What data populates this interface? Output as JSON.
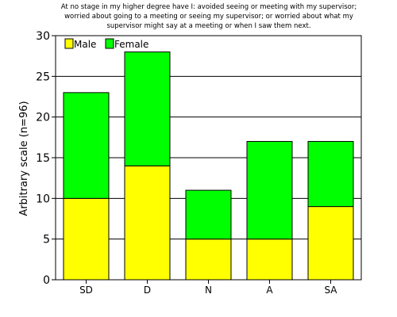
{
  "chart_data": {
    "type": "bar",
    "stacked": true,
    "title_lines": [
      "At no stage in my higher degree have I: avoided seeing or meeting with my supervisor;",
      "worried about going to a meeting or seeing my supervisor; or worried about what my",
      "supervisor might say at a meeting or when I saw them next."
    ],
    "ylabel": "Arbitrary scale (n=96)",
    "xlabel": "",
    "categories": [
      "SD",
      "D",
      "N",
      "A",
      "SA"
    ],
    "series": [
      {
        "name": "Male",
        "color": "#ffff00",
        "values": [
          10,
          14,
          5,
          5,
          9
        ]
      },
      {
        "name": "Female",
        "color": "#00ff00",
        "values": [
          13,
          14,
          6,
          12,
          8
        ]
      }
    ],
    "ylim": [
      0,
      30
    ],
    "yticks": [
      0,
      5,
      10,
      15,
      20,
      25,
      30
    ],
    "grid": true,
    "legend_position": "top-left"
  }
}
